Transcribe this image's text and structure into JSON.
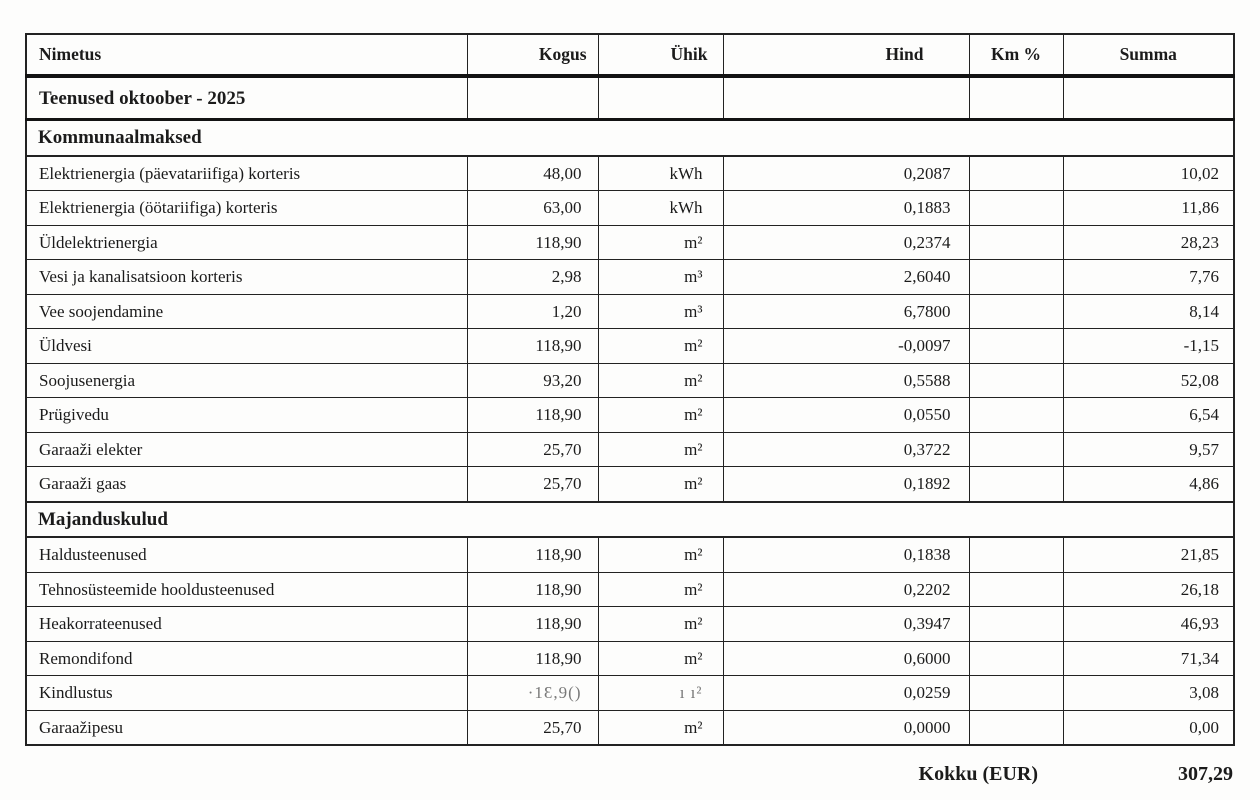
{
  "page": {
    "background": "#fdfdfc",
    "ink_color": "#1b1b1b",
    "border_color": "#222222"
  },
  "table": {
    "columns": [
      {
        "id": "nimetus",
        "label": "Nimetus"
      },
      {
        "id": "kogus",
        "label": "Kogus"
      },
      {
        "id": "yhik",
        "label": "Ühik"
      },
      {
        "id": "hind",
        "label": "Hind"
      },
      {
        "id": "km",
        "label": "Km %"
      },
      {
        "id": "summa",
        "label": "Summa"
      }
    ],
    "title_row": "Teenused oktoober - 2025",
    "sections": [
      {
        "header": "Kommunaalmaksed",
        "rows": [
          {
            "name": "Elektrienergia (päevatariifiga) korteris",
            "qty": "48,00",
            "unit": "kWh",
            "price": "0,2087",
            "vat": "",
            "sum": "10,02"
          },
          {
            "name": "Elektrienergia (öötariifiga) korteris",
            "qty": "63,00",
            "unit": "kWh",
            "price": "0,1883",
            "vat": "",
            "sum": "11,86"
          },
          {
            "name": "Üldelektrienergia",
            "qty": "118,90",
            "unit": "m²",
            "price": "0,2374",
            "vat": "",
            "sum": "28,23"
          },
          {
            "name": "Vesi ja kanalisatsioon korteris",
            "qty": "2,98",
            "unit": "m³",
            "price": "2,6040",
            "vat": "",
            "sum": "7,76"
          },
          {
            "name": "Vee soojendamine",
            "qty": "1,20",
            "unit": "m³",
            "price": "6,7800",
            "vat": "",
            "sum": "8,14"
          },
          {
            "name": "Üldvesi",
            "qty": "118,90",
            "unit": "m²",
            "price": "-0,0097",
            "vat": "",
            "sum": "-1,15"
          },
          {
            "name": "Soojusenergia",
            "qty": "93,20",
            "unit": "m²",
            "price": "0,5588",
            "vat": "",
            "sum": "52,08"
          },
          {
            "name": "Prügivedu",
            "qty": "118,90",
            "unit": "m²",
            "price": "0,0550",
            "vat": "",
            "sum": "6,54"
          },
          {
            "name": "Garaaži elekter",
            "qty": "25,70",
            "unit": "m²",
            "price": "0,3722",
            "vat": "",
            "sum": "9,57"
          },
          {
            "name": "Garaaži gaas",
            "qty": "25,70",
            "unit": "m²",
            "price": "0,1892",
            "vat": "",
            "sum": "4,86"
          }
        ]
      },
      {
        "header": "Majanduskulud",
        "rows": [
          {
            "name": "Haldusteenused",
            "qty": "118,90",
            "unit": "m²",
            "price": "0,1838",
            "vat": "",
            "sum": "21,85"
          },
          {
            "name": "Tehnosüsteemide hooldusteenused",
            "qty": "118,90",
            "unit": "m²",
            "price": "0,2202",
            "vat": "",
            "sum": "26,18"
          },
          {
            "name": "Heakorrateenused",
            "qty": "118,90",
            "unit": "m²",
            "price": "0,3947",
            "vat": "",
            "sum": "46,93"
          },
          {
            "name": "Remondifond",
            "qty": "118,90",
            "unit": "m²",
            "price": "0,6000",
            "vat": "",
            "sum": "71,34"
          },
          {
            "name": "Kindlustus",
            "qty": "·1Ɛ,9()",
            "unit": "ı ı²",
            "price": "0,0259",
            "vat": "",
            "sum": "3,08",
            "degraded": true
          },
          {
            "name": "Garaažipesu",
            "qty": "25,70",
            "unit": "m²",
            "price": "0,0000",
            "vat": "",
            "sum": "0,00"
          }
        ]
      }
    ],
    "footer": {
      "label": "Kokku (EUR)",
      "total": "307,29"
    }
  }
}
